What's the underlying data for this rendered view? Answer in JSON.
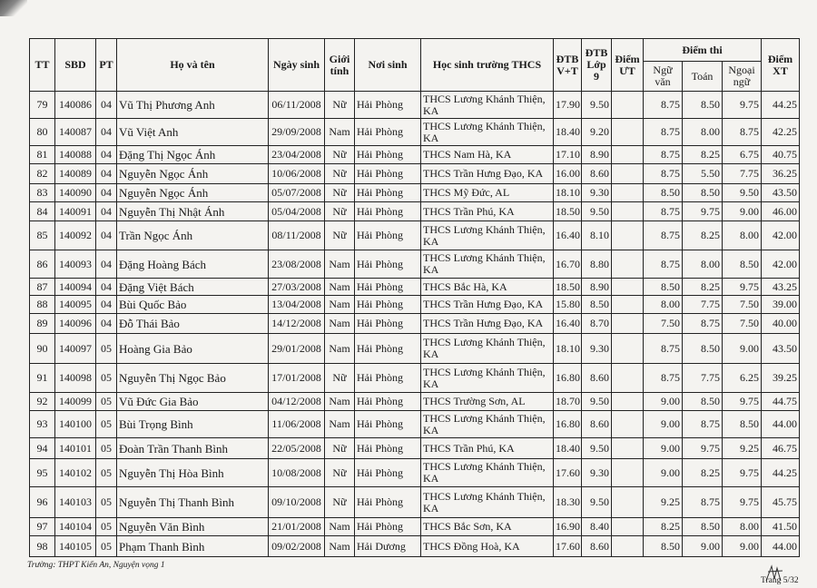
{
  "headers": {
    "tt": "TT",
    "sbd": "SBD",
    "pt": "PT",
    "name": "Họ và tên",
    "dob": "Ngày sinh",
    "gender": "Giới tính",
    "birthplace": "Nơi sinh",
    "school": "Học sinh trường THCS",
    "dtb_vt": "ĐTB V+T",
    "dtb_lop9": "ĐTB Lớp 9",
    "diem_ut": "Điểm ƯT",
    "diem_thi": "Điểm thi",
    "ngu_van": "Ngữ văn",
    "toan": "Toán",
    "ngoai_ngu": "Ngoại ngữ",
    "diem_xt": "Điểm XT"
  },
  "rows": [
    [
      "79",
      "140086",
      "04",
      "Vũ Thị Phương Anh",
      "06/11/2008",
      "Nữ",
      "Hải Phòng",
      "THCS Lương Khánh Thiện, KA",
      "17.90",
      "9.50",
      "",
      "8.75",
      "8.50",
      "9.75",
      "44.25"
    ],
    [
      "80",
      "140087",
      "04",
      "Vũ Việt Anh",
      "29/09/2008",
      "Nam",
      "Hải Phòng",
      "THCS Lương Khánh Thiện, KA",
      "18.40",
      "9.20",
      "",
      "8.75",
      "8.00",
      "8.75",
      "42.25"
    ],
    [
      "81",
      "140088",
      "04",
      "Đặng Thị Ngọc Ánh",
      "23/04/2008",
      "Nữ",
      "Hải Phòng",
      "THCS Nam Hà, KA",
      "17.10",
      "8.90",
      "",
      "8.75",
      "8.25",
      "6.75",
      "40.75"
    ],
    [
      "82",
      "140089",
      "04",
      "Nguyễn Ngọc Ánh",
      "10/06/2008",
      "Nữ",
      "Hải Phòng",
      "THCS Trần Hưng  Đạo, KA",
      "16.00",
      "8.60",
      "",
      "8.75",
      "5.50",
      "7.75",
      "36.25"
    ],
    [
      "83",
      "140090",
      "04",
      "Nguyễn Ngọc Ánh",
      "05/07/2008",
      "Nữ",
      "Hải Phòng",
      "THCS Mỹ Đức, AL",
      "18.10",
      "9.30",
      "",
      "8.50",
      "8.50",
      "9.50",
      "43.50"
    ],
    [
      "84",
      "140091",
      "04",
      "Nguyễn Thị Nhật Ánh",
      "05/04/2008",
      "Nữ",
      "Hải Phòng",
      "THCS Trần Phú, KA",
      "18.50",
      "9.50",
      "",
      "8.75",
      "9.75",
      "9.00",
      "46.00"
    ],
    [
      "85",
      "140092",
      "04",
      "Trần Ngọc Ánh",
      "08/11/2008",
      "Nữ",
      "Hải Phòng",
      "THCS Lương Khánh Thiện, KA",
      "16.40",
      "8.10",
      "",
      "8.75",
      "8.25",
      "8.00",
      "42.00"
    ],
    [
      "86",
      "140093",
      "04",
      "Đặng Hoàng Bách",
      "23/08/2008",
      "Nam",
      "Hải Phòng",
      "THCS Lương Khánh Thiện, KA",
      "16.70",
      "8.80",
      "",
      "8.75",
      "8.00",
      "8.50",
      "42.00"
    ],
    [
      "87",
      "140094",
      "04",
      "Đặng Việt Bách",
      "27/03/2008",
      "Nam",
      "Hải Phòng",
      "THCS Bắc Hà, KA",
      "18.50",
      "8.90",
      "",
      "8.50",
      "8.25",
      "9.75",
      "43.25"
    ],
    [
      "88",
      "140095",
      "04",
      "Bùi Quốc Bảo",
      "13/04/2008",
      "Nam",
      "Hải Phòng",
      "THCS Trần Hưng  Đạo, KA",
      "15.80",
      "8.50",
      "",
      "8.00",
      "7.75",
      "7.50",
      "39.00"
    ],
    [
      "89",
      "140096",
      "04",
      "Đỗ Thái Bảo",
      "14/12/2008",
      "Nam",
      "Hải Phòng",
      "THCS Trần Hưng  Đạo, KA",
      "16.40",
      "8.70",
      "",
      "7.50",
      "8.75",
      "7.50",
      "40.00"
    ],
    [
      "90",
      "140097",
      "05",
      "Hoàng Gia Bảo",
      "29/01/2008",
      "Nam",
      "Hải Phòng",
      "THCS Lương Khánh Thiện, KA",
      "18.10",
      "9.30",
      "",
      "8.75",
      "8.50",
      "9.00",
      "43.50"
    ],
    [
      "91",
      "140098",
      "05",
      "Nguyễn Thị Ngọc Bảo",
      "17/01/2008",
      "Nữ",
      "Hải Phòng",
      "THCS Lương Khánh Thiện, KA",
      "16.80",
      "8.60",
      "",
      "8.75",
      "7.75",
      "6.25",
      "39.25"
    ],
    [
      "92",
      "140099",
      "05",
      "Vũ Đức Gia Bảo",
      "04/12/2008",
      "Nam",
      "Hải Phòng",
      "THCS Trường Sơn, AL",
      "18.70",
      "9.50",
      "",
      "9.00",
      "8.50",
      "9.75",
      "44.75"
    ],
    [
      "93",
      "140100",
      "05",
      "Bùi Trọng Bình",
      "11/06/2008",
      "Nam",
      "Hải Phòng",
      "THCS Lương Khánh Thiện, KA",
      "16.80",
      "8.60",
      "",
      "9.00",
      "8.75",
      "8.50",
      "44.00"
    ],
    [
      "94",
      "140101",
      "05",
      "Đoàn Trần Thanh Bình",
      "22/05/2008",
      "Nữ",
      "Hải Phòng",
      "THCS Trần Phú, KA",
      "18.40",
      "9.50",
      "",
      "9.00",
      "9.75",
      "9.25",
      "46.75"
    ],
    [
      "95",
      "140102",
      "05",
      "Nguyễn Thị Hòa Bình",
      "10/08/2008",
      "Nữ",
      "Hải Phòng",
      "THCS Lương Khánh Thiện, KA",
      "17.60",
      "9.30",
      "",
      "9.00",
      "8.25",
      "9.75",
      "44.25"
    ],
    [
      "96",
      "140103",
      "05",
      "Nguyễn Thị Thanh Bình",
      "09/10/2008",
      "Nữ",
      "Hải Phòng",
      "THCS Lương Khánh Thiện, KA",
      "18.30",
      "9.50",
      "",
      "9.25",
      "8.75",
      "9.75",
      "45.75"
    ],
    [
      "97",
      "140104",
      "05",
      "Nguyễn Văn Bình",
      "21/01/2008",
      "Nam",
      "Hải Phòng",
      "THCS Bắc Sơn, KA",
      "16.90",
      "8.40",
      "",
      "8.25",
      "8.50",
      "8.00",
      "41.50"
    ],
    [
      "98",
      "140105",
      "05",
      "Phạm Thanh Bình",
      "09/02/2008",
      "Nam",
      "Hải Dương",
      "THCS Đồng Hoà, KA",
      "17.60",
      "8.60",
      "",
      "8.50",
      "9.00",
      "9.00",
      "44.00"
    ]
  ],
  "footer": "Trường: THPT Kiến An, Nguyện vọng 1",
  "page_label": "Trang 5/32"
}
